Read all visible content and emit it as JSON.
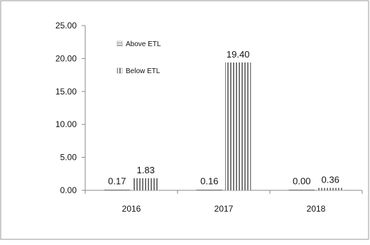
{
  "chart_data": {
    "type": "bar",
    "categories": [
      "2016",
      "2017",
      "2018"
    ],
    "series": [
      {
        "name": "Above ETL",
        "values": [
          0.17,
          0.16,
          0.0
        ],
        "labels": [
          "0.17",
          "0.16",
          "0.00"
        ],
        "pattern": "horizontal-lines"
      },
      {
        "name": "Below ETL",
        "values": [
          1.83,
          19.4,
          0.36
        ],
        "labels": [
          "1.83",
          "19.40",
          "0.36"
        ],
        "pattern": "vertical-lines"
      }
    ],
    "ylim": [
      0,
      25
    ],
    "yticks": [
      "0.00",
      "5.00",
      "10.00",
      "15.00",
      "20.00",
      "25.00"
    ],
    "legend_position": "top-left",
    "grid": false,
    "colors": {
      "pattern": "#7a7a7a",
      "axis": "#888888",
      "border": "#9a9a9a"
    }
  }
}
